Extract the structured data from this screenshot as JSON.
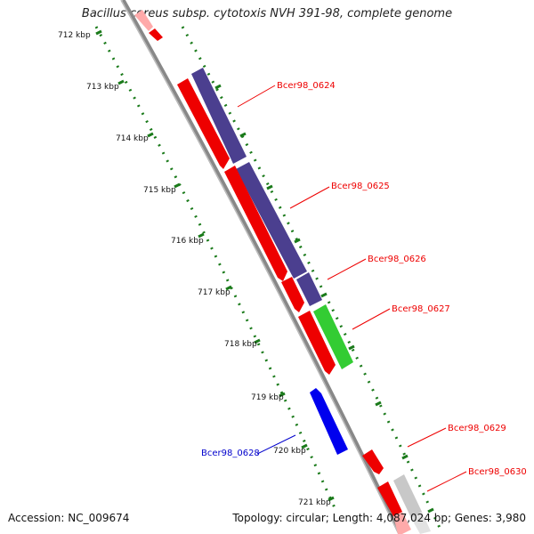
{
  "title": "Bacillus cereus subsp. cytotoxis NVH 391-98, complete genome",
  "footer": {
    "accession": "Accession: NC_009674",
    "topology": "Topology: circular; Length: 4,087,024 bp; Genes: 3,980"
  },
  "ticks": [
    "712 kbp",
    "713 kbp",
    "714 kbp",
    "715 kbp",
    "716 kbp",
    "717 kbp",
    "718 kbp",
    "719 kbp",
    "720 kbp",
    "721 kbp"
  ],
  "genes": [
    {
      "id": "Bcer98_0624",
      "color": "#ee0000"
    },
    {
      "id": "Bcer98_0625",
      "color": "#ee0000"
    },
    {
      "id": "Bcer98_0626",
      "color": "#ee0000"
    },
    {
      "id": "Bcer98_0627",
      "color": "#ee0000"
    },
    {
      "id": "Bcer98_0628",
      "color": "#0000cc"
    },
    {
      "id": "Bcer98_0629",
      "color": "#ee0000"
    },
    {
      "id": "Bcer98_0630",
      "color": "#ee0000"
    }
  ],
  "colors": {
    "cds": "#ee0000",
    "gene_track": "#4b3f8f",
    "green_track": "#33cc33",
    "blue_cds": "#0000ee",
    "backbone": "#888888",
    "ticks": "#1a7a1a"
  }
}
